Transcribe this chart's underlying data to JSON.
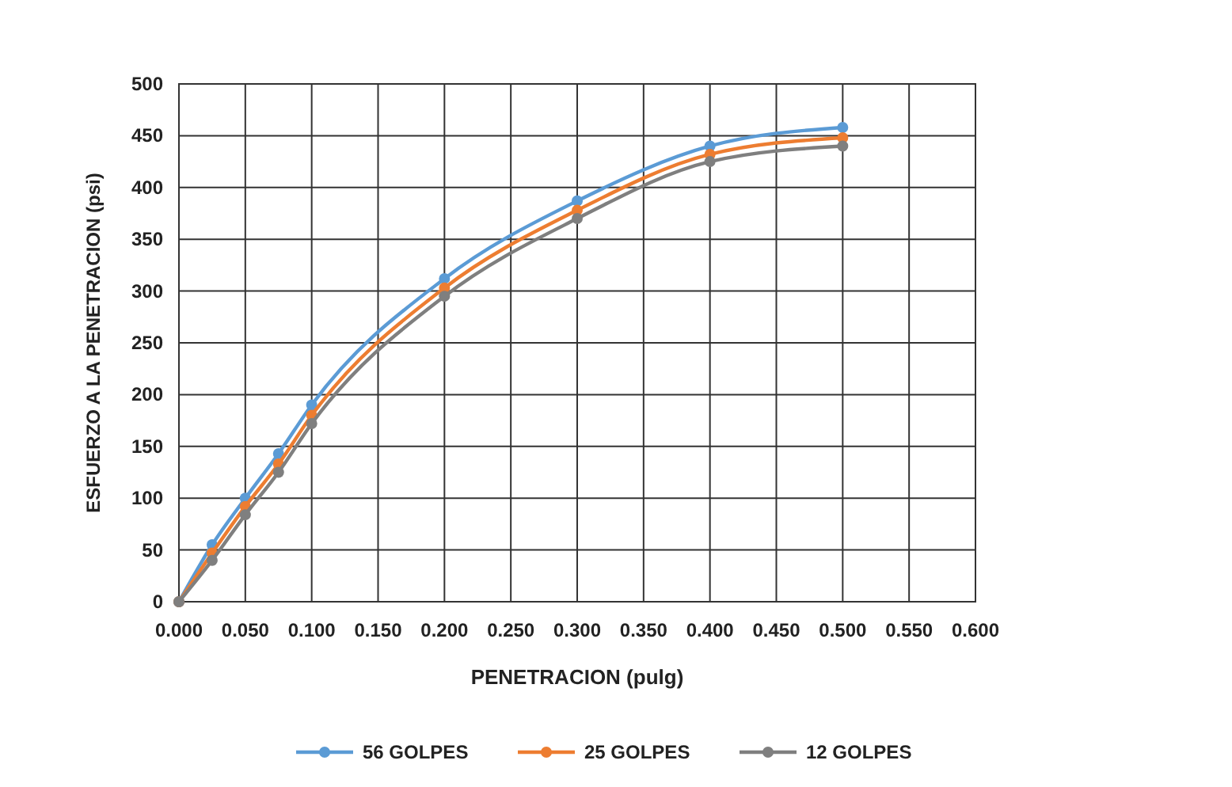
{
  "chart_data": {
    "type": "line",
    "xlabel": "PENETRACION (pulg)",
    "ylabel": "ESFUERZO A LA PENETRACION (psi)",
    "x": [
      0,
      0.025,
      0.05,
      0.075,
      0.1,
      0.2,
      0.3,
      0.4,
      0.5
    ],
    "series": [
      {
        "name": "56 GOLPES",
        "color": "#5b9bd5",
        "values": [
          0,
          55,
          100,
          143,
          190,
          312,
          387,
          440,
          458
        ]
      },
      {
        "name": "25 GOLPES",
        "color": "#ed7d31",
        "values": [
          0,
          47,
          92,
          133,
          180,
          303,
          378,
          432,
          448
        ]
      },
      {
        "name": "12 GOLPES",
        "color": "#7f7f7f",
        "values": [
          0,
          40,
          84,
          125,
          172,
          295,
          370,
          425,
          440
        ]
      }
    ],
    "xlim": [
      0,
      0.6
    ],
    "xticks": [
      {
        "value": 0,
        "label": "0.000"
      },
      {
        "value": 0.05,
        "label": "0.050"
      },
      {
        "value": 0.1,
        "label": "0.100"
      },
      {
        "value": 0.15,
        "label": "0.150"
      },
      {
        "value": 0.2,
        "label": "0.200"
      },
      {
        "value": 0.25,
        "label": "0.250"
      },
      {
        "value": 0.3,
        "label": "0.300"
      },
      {
        "value": 0.35,
        "label": "0.350"
      },
      {
        "value": 0.4,
        "label": "0.400"
      },
      {
        "value": 0.45,
        "label": "0.450"
      },
      {
        "value": 0.5,
        "label": "0.500"
      },
      {
        "value": 0.55,
        "label": "0.550"
      },
      {
        "value": 0.6,
        "label": "0.600"
      }
    ],
    "ylim": [
      0,
      500
    ],
    "yticks": [
      0,
      50,
      100,
      150,
      200,
      250,
      300,
      350,
      400,
      450,
      500
    ],
    "grid": true,
    "legend": "bottom",
    "marker": "circle",
    "line_style": "solid"
  }
}
